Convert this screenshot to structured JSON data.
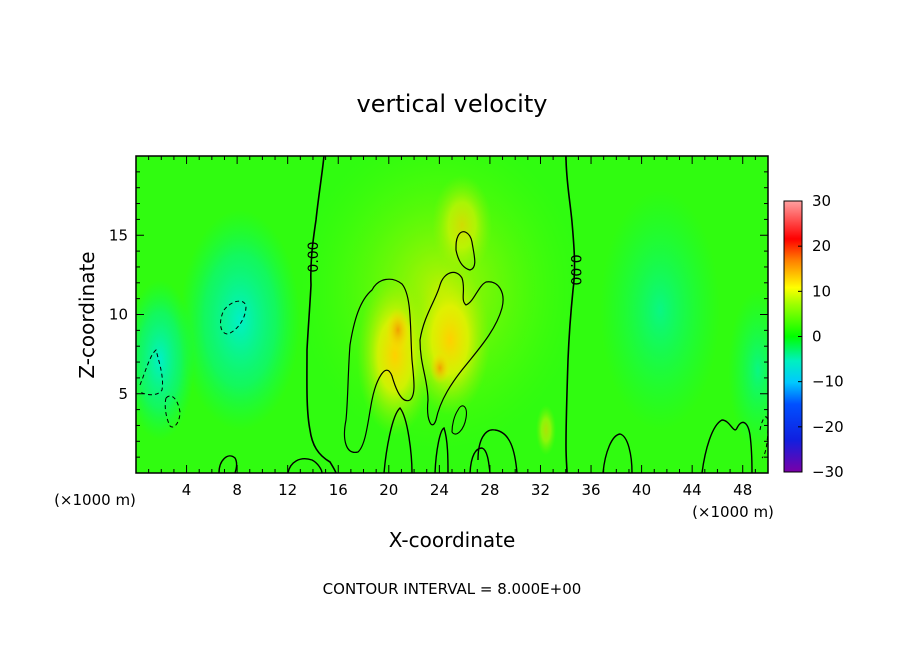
{
  "chart_data": {
    "type": "heatmap",
    "title": "vertical velocity",
    "xlabel": "X-coordinate",
    "ylabel": "Z-coordinate",
    "x_unit_label": "(×1000 m)",
    "xlim": [
      0,
      50
    ],
    "ylim": [
      0,
      20
    ],
    "x_ticks": [
      "4",
      "8",
      "12",
      "16",
      "20",
      "24",
      "28",
      "32",
      "36",
      "40",
      "44",
      "48"
    ],
    "y_ticks": [
      "5",
      "10",
      "15"
    ],
    "colorbar": {
      "range": [
        -30,
        30
      ],
      "ticks": [
        "30",
        "20",
        "10",
        "0",
        "−10",
        "−20",
        "−30"
      ],
      "colors": [
        "#7a00a8",
        "#0000ff",
        "#00c8ff",
        "#00f0c0",
        "#00ff00",
        "#ffff00",
        "#ff8000",
        "#ff0000",
        "#ff9a9a"
      ]
    },
    "contour_interval_text": "CONTOUR INTERVAL = 8.000E+00",
    "contour_labels": [
      "0.00",
      "0.00"
    ],
    "features": [
      {
        "kind": "updraft",
        "x": 21,
        "z": 8.5,
        "w": 11
      },
      {
        "kind": "updraft",
        "x": 25,
        "z": 7,
        "w": 10
      },
      {
        "kind": "updraft",
        "x": 25.5,
        "z": 16,
        "w": 7
      },
      {
        "kind": "updraft",
        "x": 32.5,
        "z": 2.5,
        "w": 5
      },
      {
        "kind": "downdraft",
        "x": 8,
        "z": 10,
        "w": -9
      },
      {
        "kind": "downdraft",
        "x": 2,
        "z": 7,
        "w": -7
      },
      {
        "kind": "downdraft",
        "x": 44,
        "z": 10,
        "w": -5
      },
      {
        "kind": "downdraft",
        "x": 49.5,
        "z": 7,
        "w": -6
      }
    ]
  }
}
